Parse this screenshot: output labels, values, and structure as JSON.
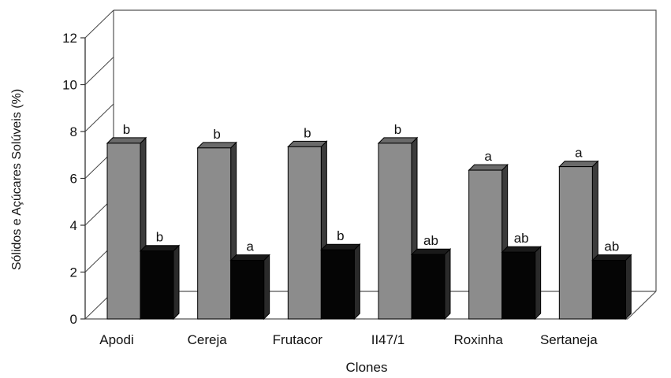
{
  "chart_data": {
    "type": "bar",
    "title": "",
    "xlabel": "Clones",
    "ylabel": "Sólidos e Açúcares Solúveis (%)",
    "ylim": [
      0,
      12
    ],
    "yticks": [
      "0",
      "2",
      "4",
      "6",
      "8",
      "10",
      "12"
    ],
    "categories": [
      "Apodi",
      "Cereja",
      "Frutacor",
      "II47/1",
      "Roxinha",
      "Sertaneja"
    ],
    "style": "3d-bars",
    "grid": false,
    "legend": "none",
    "series": [
      {
        "values": [
          7.5,
          7.3,
          7.35,
          7.5,
          6.35,
          6.5
        ],
        "labels": [
          "b",
          "b",
          "b",
          "b",
          "a",
          "a"
        ],
        "color": "#8c8c8c"
      },
      {
        "values": [
          2.9,
          2.5,
          2.95,
          2.75,
          2.85,
          2.5
        ],
        "labels": [
          "b",
          "a",
          "b",
          "ab",
          "ab",
          "ab"
        ],
        "color": "#050505"
      }
    ]
  }
}
